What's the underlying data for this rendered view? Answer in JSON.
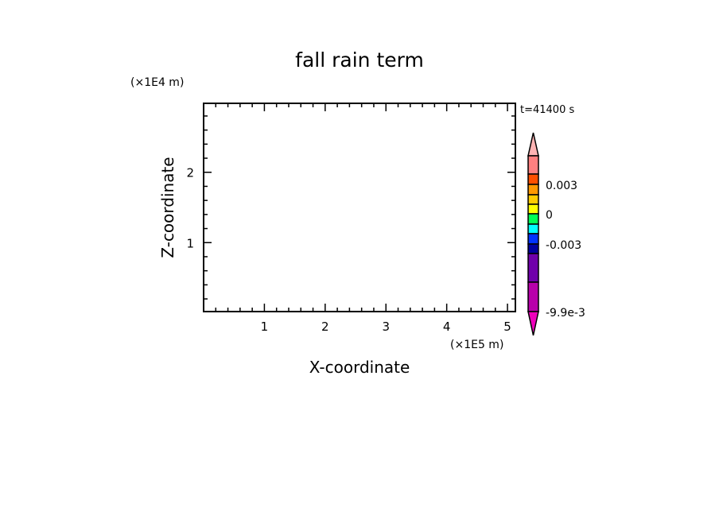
{
  "chart_data": {
    "type": "heatmap",
    "title": "fall rain term",
    "xlabel": "X-coordinate",
    "ylabel": "Z-coordinate",
    "x_unit": "(×1E5 m)",
    "y_unit": "(×1E4 m)",
    "time_label": "t=41400 s",
    "xlim": [
      0,
      5.13
    ],
    "ylim": [
      0.02,
      2.98
    ],
    "x_ticks": [
      1,
      2,
      3,
      4,
      5
    ],
    "x_tick_labels": [
      "1",
      "2",
      "3",
      "4",
      "5"
    ],
    "y_ticks": [
      1,
      2
    ],
    "y_tick_labels": [
      "1",
      "2"
    ],
    "minor_tick_step": 0.2,
    "grid": false,
    "field_values": "none shown (plot area blank)",
    "colorbar": {
      "colors": [
        "#ffb4b4",
        "#ff8080",
        "#ff5000",
        "#ff9900",
        "#ffcc00",
        "#ffff00",
        "#00ff55",
        "#00ffff",
        "#0033ff",
        "#0000a0",
        "#7000aa",
        "#b800aa",
        "#ee00bb"
      ],
      "tick_labels": [
        "0.003",
        "0",
        "-0.003",
        "-9.9e-3"
      ],
      "extend": "both"
    }
  }
}
